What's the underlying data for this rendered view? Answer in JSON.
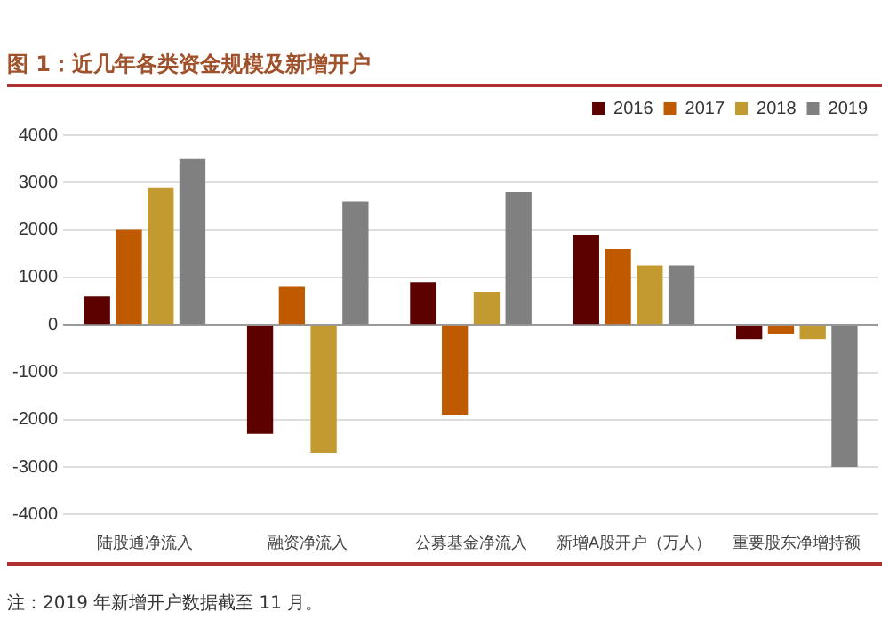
{
  "chart_data": {
    "type": "bar",
    "title": "图 1：近几年各类资金规模及新增开户",
    "categories": [
      "陆股通净流入",
      "融资净流入",
      "公募基金净流入",
      "新增A股开户（万人）",
      "重要股东净增持额"
    ],
    "series": [
      {
        "name": "2016",
        "color": "#5c0000",
        "values": [
          600,
          -2300,
          900,
          1900,
          -300
        ]
      },
      {
        "name": "2017",
        "color": "#c05a00",
        "values": [
          2000,
          800,
          -1900,
          1600,
          -200
        ]
      },
      {
        "name": "2018",
        "color": "#c39a30",
        "values": [
          2900,
          -2700,
          700,
          1250,
          -300
        ]
      },
      {
        "name": "2019",
        "color": "#808080",
        "values": [
          3500,
          2600,
          2800,
          1250,
          -3000
        ]
      }
    ],
    "ylim": [
      -4000,
      4000
    ],
    "yticks": [
      -4000,
      -3000,
      -2000,
      -1000,
      0,
      1000,
      2000,
      3000,
      4000
    ],
    "grid": "y",
    "legend": "top right",
    "annotations": [
      "注：2019 年新增开户数据截至 11 月。"
    ]
  }
}
